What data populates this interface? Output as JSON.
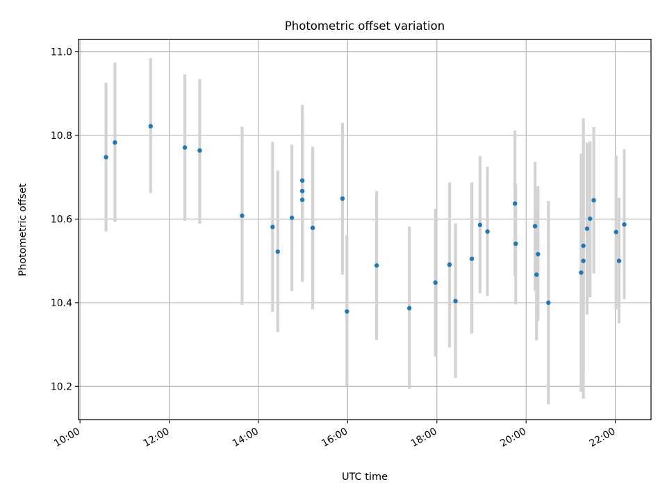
{
  "chart_data": {
    "type": "scatter",
    "title": "Photometric offset variation",
    "xlabel": "UTC time",
    "ylabel": "Photometric offset",
    "x_ticks": [
      "10:00",
      "12:00",
      "14:00",
      "16:00",
      "18:00",
      "20:00",
      "22:00"
    ],
    "y_ticks": [
      "10.2",
      "10.4",
      "10.6",
      "10.8",
      "11.0"
    ],
    "xlim": [
      "09:58",
      "22:48"
    ],
    "ylim": [
      10.12,
      11.03
    ],
    "grid": true,
    "colors": {
      "point": "#1f77b4",
      "errorbar": "#d3d3d3",
      "grid": "#b0b0b0"
    },
    "series": [
      {
        "x": [
          "10:35",
          "10:47",
          "11:35",
          "12:21",
          "12:41",
          "13:38",
          "14:19",
          "14:26",
          "14:45",
          "14:59",
          "14:59",
          "14:59",
          "15:13",
          "15:53",
          "15:59",
          "16:39",
          "17:23",
          "17:58",
          "18:17",
          "18:25",
          "18:47",
          "18:58",
          "19:08",
          "19:45",
          "19:46",
          "20:12",
          "20:14",
          "20:16",
          "20:30",
          "21:14",
          "21:17",
          "21:17",
          "21:22",
          "21:26",
          "21:31",
          "22:01",
          "22:05",
          "22:12"
        ],
        "y": [
          10.748,
          10.783,
          10.822,
          10.771,
          10.764,
          10.608,
          10.581,
          10.522,
          10.603,
          10.692,
          10.667,
          10.646,
          10.579,
          10.649,
          10.379,
          10.489,
          10.387,
          10.448,
          10.491,
          10.404,
          10.505,
          10.586,
          10.57,
          10.637,
          10.541,
          10.583,
          10.467,
          10.516,
          10.4,
          10.472,
          10.5,
          10.536,
          10.577,
          10.601,
          10.645,
          10.569,
          10.5,
          10.587
        ],
        "yerr_low": [
          10.57,
          10.593,
          10.662,
          10.596,
          10.589,
          10.395,
          10.378,
          10.33,
          10.428,
          10.51,
          10.45,
          10.467,
          10.384,
          10.467,
          10.2,
          10.311,
          10.194,
          10.271,
          10.293,
          10.22,
          10.326,
          10.423,
          10.416,
          10.463,
          10.396,
          10.429,
          10.31,
          10.356,
          10.157,
          10.187,
          10.17,
          10.234,
          10.372,
          10.413,
          10.47,
          10.384,
          10.351,
          10.408
        ],
        "yerr_high": [
          10.926,
          10.974,
          10.985,
          10.946,
          10.935,
          10.821,
          10.785,
          10.716,
          10.778,
          10.873,
          10.848,
          10.825,
          10.773,
          10.83,
          10.561,
          10.667,
          10.582,
          10.624,
          10.688,
          10.59,
          10.688,
          10.751,
          10.725,
          10.812,
          10.684,
          10.737,
          10.624,
          10.679,
          10.643,
          10.756,
          10.841,
          10.832,
          10.783,
          10.786,
          10.82,
          10.752,
          10.651,
          10.767
        ]
      }
    ]
  }
}
